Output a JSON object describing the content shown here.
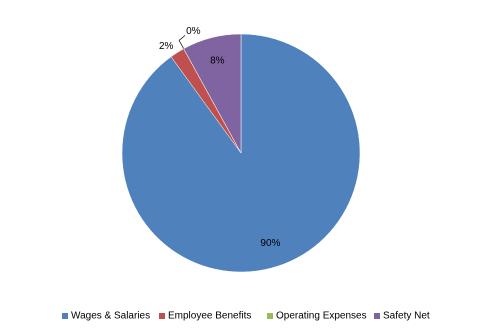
{
  "chart_data": {
    "type": "pie",
    "categories": [
      "Wages & Salaries",
      "Employee Benefits",
      "Operating Expenses",
      "Safety Net"
    ],
    "values": [
      90,
      2,
      0,
      8
    ],
    "value_labels": [
      "90%",
      "2%",
      "0%",
      "8%"
    ],
    "colors": [
      "#4f81bd",
      "#c0504d",
      "#9bbb59",
      "#8064a2"
    ],
    "legend": "bottom"
  }
}
